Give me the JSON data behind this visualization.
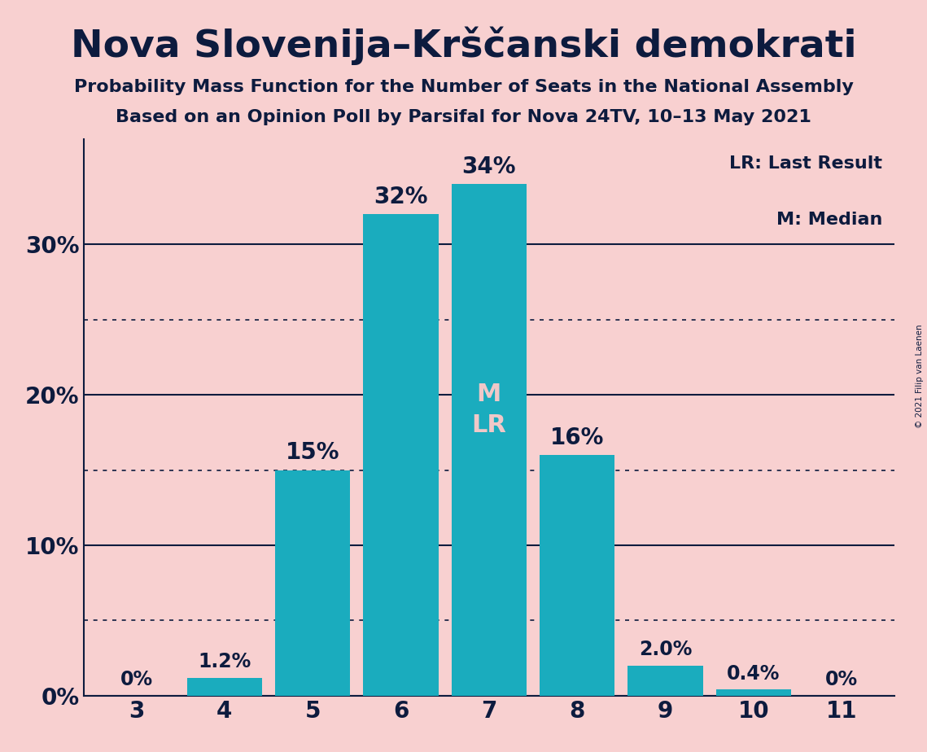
{
  "title": "Nova Slovenija–Krščanski demokrati",
  "subtitle1": "Probability Mass Function for the Number of Seats in the National Assembly",
  "subtitle2": "Based on an Opinion Poll by Parsifal for Nova 24TV, 10–13 May 2021",
  "copyright": "© 2021 Filip van Laenen",
  "seats": [
    3,
    4,
    5,
    6,
    7,
    8,
    9,
    10,
    11
  ],
  "probabilities": [
    0.0,
    1.2,
    15.0,
    32.0,
    34.0,
    16.0,
    2.0,
    0.4,
    0.0
  ],
  "bar_color": "#1aacbe",
  "background_color": "#f8d0d0",
  "text_color": "#0d1b3e",
  "label_color_inside": "#f0c8c8",
  "median_seat": 7,
  "last_result_seat": 7,
  "legend_lr": "LR: Last Result",
  "legend_m": "M: Median",
  "ylim": [
    0,
    37
  ],
  "dotted_lines": [
    5,
    15,
    25
  ],
  "solid_lines": [
    0,
    10,
    20,
    30
  ]
}
